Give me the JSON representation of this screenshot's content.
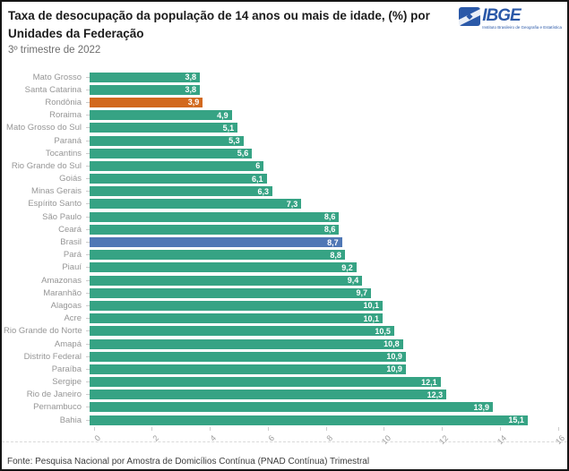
{
  "header": {
    "title": "Taxa de desocupação da população de 14 anos ou mais de idade, (%) por Unidades da Federação",
    "subtitle": "3º trimestre de 2022"
  },
  "logo": {
    "name": "IBGE",
    "tagline": "Instituto Brasileiro de Geografia e Estatística",
    "color": "#2b59a8"
  },
  "chart_data": {
    "type": "bar",
    "orientation": "horizontal",
    "title": "Taxa de desocupação da população de 14 anos ou mais de idade, (%) por Unidades da Federação",
    "subtitle": "3º trimestre de 2022",
    "xlabel": "",
    "ylabel": "",
    "xlim": [
      0,
      16
    ],
    "xticks": [
      0,
      2,
      4,
      6,
      8,
      10,
      12,
      14,
      16
    ],
    "grid": false,
    "legend": false,
    "bar_color_default": "#36a384",
    "bars": [
      {
        "label": "Mato Grosso",
        "value": 3.8,
        "display": "3,8"
      },
      {
        "label": "Santa Catarina",
        "value": 3.8,
        "display": "3,8"
      },
      {
        "label": "Rondônia",
        "value": 3.9,
        "display": "3,9",
        "color": "#d2691e"
      },
      {
        "label": "Roraima",
        "value": 4.9,
        "display": "4,9"
      },
      {
        "label": "Mato Grosso do Sul",
        "value": 5.1,
        "display": "5,1"
      },
      {
        "label": "Paraná",
        "value": 5.3,
        "display": "5,3"
      },
      {
        "label": "Tocantins",
        "value": 5.6,
        "display": "5,6"
      },
      {
        "label": "Rio Grande do Sul",
        "value": 6,
        "display": "6"
      },
      {
        "label": "Goiás",
        "value": 6.1,
        "display": "6,1"
      },
      {
        "label": "Minas Gerais",
        "value": 6.3,
        "display": "6,3"
      },
      {
        "label": "Espírito Santo",
        "value": 7.3,
        "display": "7,3"
      },
      {
        "label": "São Paulo",
        "value": 8.6,
        "display": "8,6"
      },
      {
        "label": "Ceará",
        "value": 8.6,
        "display": "8,6"
      },
      {
        "label": "Brasil",
        "value": 8.7,
        "display": "8,7",
        "color": "#4f77b5"
      },
      {
        "label": "Pará",
        "value": 8.8,
        "display": "8,8"
      },
      {
        "label": "Piauí",
        "value": 9.2,
        "display": "9,2"
      },
      {
        "label": "Amazonas",
        "value": 9.4,
        "display": "9,4"
      },
      {
        "label": "Maranhão",
        "value": 9.7,
        "display": "9,7"
      },
      {
        "label": "Alagoas",
        "value": 10.1,
        "display": "10,1"
      },
      {
        "label": "Acre",
        "value": 10.1,
        "display": "10,1"
      },
      {
        "label": "Rio Grande do Norte",
        "value": 10.5,
        "display": "10,5"
      },
      {
        "label": "Amapá",
        "value": 10.8,
        "display": "10,8"
      },
      {
        "label": "Distrito Federal",
        "value": 10.9,
        "display": "10,9"
      },
      {
        "label": "Paraíba",
        "value": 10.9,
        "display": "10,9"
      },
      {
        "label": "Sergipe",
        "value": 12.1,
        "display": "12,1"
      },
      {
        "label": "Rio de Janeiro",
        "value": 12.3,
        "display": "12,3"
      },
      {
        "label": "Pernambuco",
        "value": 13.9,
        "display": "13,9"
      },
      {
        "label": "Bahia",
        "value": 15.1,
        "display": "15,1"
      }
    ]
  },
  "footer": {
    "source": "Fonte: Pesquisa Nacional por Amostra de Domicílios Contínua (PNAD Contínua) Trimestral"
  },
  "colors": {
    "bar_green": "#36a384",
    "highlight_orange": "#d2691e",
    "highlight_blue": "#4f77b5",
    "axis_label_gray": "#9a9a9a",
    "category_label_gray": "#969696"
  }
}
